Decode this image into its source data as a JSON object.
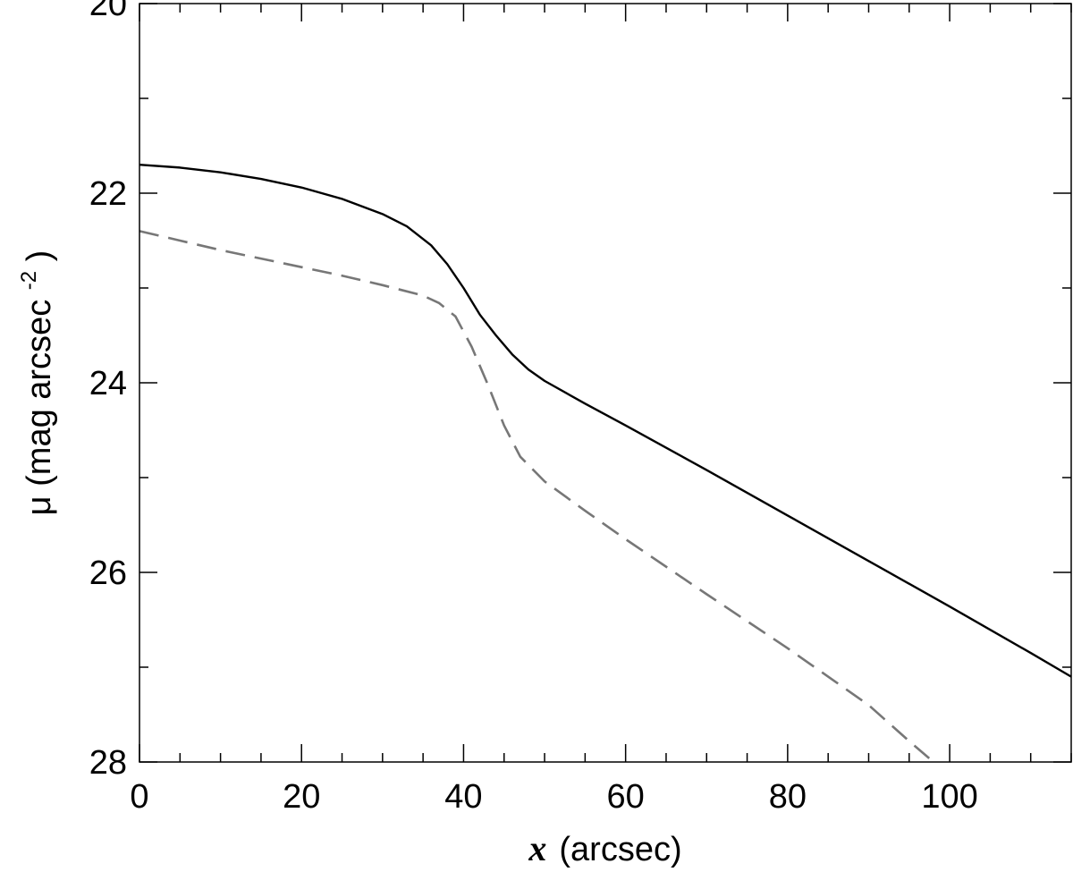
{
  "chart_data": {
    "type": "line",
    "xlabel": {
      "var": "x",
      "unit": "(arcsec)"
    },
    "ylabel": {
      "main": "μ (mag arcsec",
      "sup": "-2",
      "close": ")"
    },
    "xlim": [
      0,
      115
    ],
    "ylim": [
      28,
      20
    ],
    "y_inverted": true,
    "grid": false,
    "x_ticks": [
      0,
      20,
      40,
      60,
      80,
      100
    ],
    "y_ticks": [
      20,
      22,
      24,
      26,
      28
    ],
    "x_minor_step": 5,
    "y_minor_step": 1,
    "series": [
      {
        "style": "solid",
        "color": "#000000",
        "x": [
          0,
          5,
          10,
          15,
          20,
          25,
          30,
          33,
          36,
          38,
          40,
          42,
          44,
          46,
          48,
          50,
          55,
          60,
          70,
          80,
          90,
          100,
          110,
          115
        ],
        "y": [
          21.7,
          21.73,
          21.78,
          21.85,
          21.94,
          22.06,
          22.22,
          22.35,
          22.55,
          22.75,
          23.0,
          23.28,
          23.5,
          23.7,
          23.86,
          23.98,
          24.22,
          24.45,
          24.92,
          25.4,
          25.88,
          26.36,
          26.85,
          27.1
        ]
      },
      {
        "style": "dashed",
        "color": "#777777",
        "x": [
          0,
          5,
          10,
          15,
          20,
          25,
          30,
          35,
          37,
          39,
          41,
          43,
          45,
          47,
          50,
          55,
          60,
          70,
          80,
          90,
          95,
          98
        ],
        "y": [
          22.4,
          22.5,
          22.6,
          22.69,
          22.78,
          22.87,
          22.97,
          23.08,
          23.16,
          23.3,
          23.62,
          24.02,
          24.45,
          24.78,
          25.04,
          25.35,
          25.65,
          26.23,
          26.8,
          27.4,
          27.78,
          28.0
        ]
      }
    ]
  }
}
